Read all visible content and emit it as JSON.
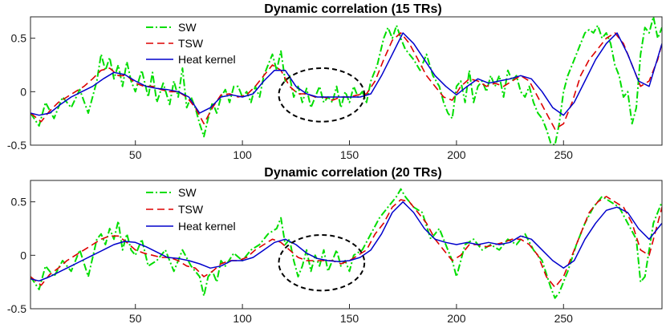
{
  "chart_data": [
    {
      "type": "line",
      "title": "Dynamic correlation (15 TRs)",
      "xlabel": "",
      "ylabel": "",
      "xlim": [
        1,
        296
      ],
      "ylim": [
        -0.5,
        0.7
      ],
      "xticks": [
        50,
        100,
        150,
        200,
        250
      ],
      "yticks": [
        -0.5,
        0,
        0.5
      ],
      "legend_position": "top-left",
      "annotation": "dashed ellipse around x 120-160",
      "ellipse": {
        "cx": 137,
        "cy": -0.03,
        "rx": 20,
        "ry": 0.25
      },
      "series": [
        {
          "name": "SW",
          "color": "#00dd00",
          "style": "dashdot",
          "x": [
            1,
            5,
            8,
            12,
            16,
            20,
            24,
            28,
            32,
            34,
            36,
            38,
            40,
            42,
            44,
            46,
            48,
            50,
            53,
            56,
            58,
            60,
            63,
            66,
            68,
            70,
            72,
            74,
            76,
            78,
            80,
            82,
            84,
            86,
            88,
            90,
            92,
            94,
            96,
            98,
            100,
            102,
            104,
            106,
            108,
            110,
            112,
            114,
            116,
            118,
            120,
            122,
            124,
            126,
            128,
            130,
            132,
            134,
            136,
            138,
            140,
            142,
            144,
            146,
            148,
            150,
            152,
            154,
            156,
            158,
            160,
            163,
            166,
            168,
            170,
            172,
            174,
            176,
            178,
            180,
            183,
            186,
            189,
            192,
            194,
            196,
            198,
            200,
            202,
            204,
            206,
            208,
            210,
            212,
            214,
            216,
            218,
            220,
            222,
            224,
            226,
            228,
            230,
            232,
            234,
            236,
            238,
            240,
            242,
            244,
            246,
            248,
            250,
            252,
            254,
            256,
            258,
            260,
            262,
            264,
            266,
            268,
            270,
            272,
            274,
            276,
            278,
            280,
            282,
            284,
            286,
            288,
            290,
            292,
            294,
            296
          ],
          "values": [
            -0.2,
            -0.32,
            -0.1,
            -0.25,
            -0.05,
            -0.15,
            0.02,
            -0.2,
            0.1,
            0.35,
            0.2,
            0.32,
            0.12,
            0.25,
            0.05,
            0.28,
            0.1,
            0.0,
            0.2,
            -0.05,
            0.18,
            -0.1,
            0.08,
            -0.12,
            0.1,
            -0.05,
            0.22,
            -0.15,
            -0.05,
            -0.15,
            -0.3,
            -0.42,
            -0.25,
            -0.1,
            -0.2,
            -0.05,
            0.02,
            -0.1,
            0.05,
            0.05,
            -0.05,
            0.0,
            -0.1,
            0.05,
            -0.05,
            0.15,
            0.25,
            0.35,
            0.2,
            0.38,
            0.1,
            0.15,
            -0.05,
            0.05,
            -0.1,
            0.03,
            -0.15,
            -0.05,
            0.05,
            -0.1,
            -0.05,
            -0.1,
            0.05,
            -0.15,
            0.0,
            -0.1,
            0.05,
            -0.05,
            0.0,
            -0.1,
            0.1,
            0.25,
            0.5,
            0.6,
            0.5,
            0.62,
            0.5,
            0.4,
            0.35,
            0.3,
            0.2,
            0.35,
            0.15,
            0.05,
            -0.1,
            -0.2,
            -0.25,
            0.05,
            0.1,
            -0.1,
            0.2,
            -0.1,
            0.05,
            0.1,
            0.0,
            0.15,
            0.05,
            0.15,
            -0.05,
            0.2,
            0.1,
            0.15,
            0.0,
            -0.05,
            0.05,
            -0.1,
            -0.2,
            -0.25,
            -0.35,
            -0.48,
            -0.5,
            -0.3,
            0.0,
            0.15,
            0.25,
            0.35,
            0.45,
            0.55,
            0.58,
            0.55,
            0.62,
            0.5,
            0.55,
            0.45,
            0.25,
            0.15,
            -0.05,
            0.0,
            -0.3,
            -0.15,
            0.35,
            0.6,
            0.55,
            0.7,
            0.5,
            0.6
          ],
          "data_name": "series-sw-line"
        },
        {
          "name": "TSW",
          "color": "#dd0000",
          "style": "dashed",
          "x": [
            1,
            6,
            10,
            14,
            18,
            22,
            26,
            30,
            34,
            38,
            42,
            46,
            50,
            54,
            58,
            62,
            66,
            70,
            74,
            78,
            82,
            86,
            90,
            94,
            98,
            102,
            106,
            110,
            114,
            118,
            122,
            126,
            130,
            134,
            138,
            142,
            146,
            150,
            154,
            158,
            162,
            166,
            170,
            174,
            178,
            182,
            186,
            190,
            194,
            198,
            202,
            206,
            210,
            214,
            218,
            222,
            226,
            230,
            234,
            238,
            242,
            246,
            250,
            254,
            258,
            262,
            266,
            270,
            274,
            278,
            282,
            286,
            290,
            294,
            296
          ],
          "values": [
            -0.2,
            -0.28,
            -0.18,
            -0.1,
            -0.05,
            0.0,
            0.05,
            0.12,
            0.2,
            0.22,
            0.15,
            0.15,
            0.08,
            0.05,
            0.05,
            0.02,
            0.0,
            0.0,
            -0.05,
            -0.15,
            -0.3,
            -0.15,
            -0.03,
            -0.02,
            -0.05,
            -0.03,
            0.05,
            0.15,
            0.25,
            0.2,
            0.05,
            -0.02,
            -0.02,
            -0.05,
            -0.05,
            -0.08,
            -0.05,
            -0.05,
            -0.03,
            -0.02,
            0.1,
            0.3,
            0.48,
            0.55,
            0.45,
            0.3,
            0.15,
            0.05,
            -0.05,
            -0.08,
            0.05,
            0.12,
            0.1,
            0.05,
            0.08,
            0.05,
            0.1,
            0.15,
            0.1,
            -0.05,
            -0.2,
            -0.35,
            -0.3,
            -0.1,
            0.15,
            0.3,
            0.4,
            0.5,
            0.55,
            0.45,
            0.25,
            0.05,
            0.1,
            0.3,
            0.45
          ],
          "data_name": "series-tsw-line"
        },
        {
          "name": "Heat kernel",
          "color": "#0000cc",
          "style": "solid",
          "x": [
            1,
            5,
            10,
            15,
            20,
            25,
            30,
            35,
            40,
            45,
            50,
            55,
            60,
            65,
            70,
            75,
            80,
            85,
            90,
            95,
            100,
            105,
            110,
            115,
            120,
            125,
            130,
            135,
            140,
            145,
            150,
            155,
            160,
            165,
            170,
            175,
            180,
            185,
            190,
            195,
            200,
            205,
            210,
            215,
            220,
            225,
            230,
            235,
            240,
            245,
            250,
            255,
            260,
            265,
            270,
            275,
            280,
            285,
            290,
            296
          ],
          "values": [
            -0.2,
            -0.22,
            -0.2,
            -0.12,
            -0.05,
            0.0,
            0.05,
            0.12,
            0.18,
            0.16,
            0.1,
            0.05,
            0.03,
            0.02,
            0.0,
            -0.05,
            -0.2,
            -0.15,
            -0.05,
            -0.03,
            -0.05,
            -0.02,
            0.1,
            0.2,
            0.2,
            0.05,
            -0.02,
            -0.05,
            -0.05,
            -0.05,
            -0.05,
            -0.05,
            -0.02,
            0.15,
            0.35,
            0.55,
            0.45,
            0.3,
            0.15,
            0.05,
            -0.03,
            0.05,
            0.12,
            0.08,
            0.1,
            0.12,
            0.15,
            0.12,
            0.0,
            -0.15,
            -0.22,
            -0.1,
            0.1,
            0.3,
            0.45,
            0.55,
            0.35,
            0.1,
            0.05,
            0.45
          ],
          "data_name": "series-heat-kernel-line"
        }
      ]
    },
    {
      "type": "line",
      "title": "Dynamic correlation (20 TRs)",
      "xlabel": "",
      "ylabel": "",
      "xlim": [
        1,
        296
      ],
      "ylim": [
        -0.5,
        0.7
      ],
      "xticks": [
        50,
        100,
        150,
        200,
        250
      ],
      "yticks": [
        -0.5,
        0,
        0.5
      ],
      "legend_position": "top-left",
      "annotation": "dashed ellipse around x 120-160",
      "ellipse": {
        "cx": 137,
        "cy": -0.07,
        "rx": 20,
        "ry": 0.26
      },
      "series": [
        {
          "name": "SW",
          "color": "#00dd00",
          "style": "dashdot",
          "x": [
            1,
            5,
            8,
            12,
            16,
            20,
            24,
            28,
            32,
            34,
            36,
            38,
            40,
            42,
            44,
            46,
            48,
            50,
            53,
            56,
            60,
            64,
            68,
            72,
            76,
            80,
            82,
            84,
            86,
            88,
            90,
            92,
            96,
            100,
            104,
            108,
            112,
            116,
            118,
            120,
            122,
            124,
            126,
            128,
            130,
            132,
            134,
            136,
            138,
            140,
            142,
            144,
            146,
            148,
            150,
            152,
            156,
            160,
            164,
            168,
            172,
            174,
            176,
            178,
            180,
            184,
            188,
            192,
            196,
            198,
            200,
            204,
            208,
            212,
            216,
            220,
            224,
            228,
            232,
            236,
            240,
            244,
            246,
            248,
            252,
            256,
            260,
            264,
            268,
            272,
            276,
            280,
            284,
            286,
            288,
            292,
            296
          ],
          "values": [
            -0.2,
            -0.32,
            -0.1,
            -0.2,
            -0.05,
            -0.15,
            0.05,
            -0.2,
            0.15,
            0.2,
            0.1,
            0.25,
            0.15,
            0.32,
            0.05,
            0.2,
            0.05,
            0.0,
            0.15,
            -0.1,
            -0.05,
            0.05,
            -0.15,
            0.05,
            -0.1,
            -0.2,
            -0.38,
            -0.2,
            -0.15,
            -0.25,
            -0.05,
            -0.1,
            0.02,
            -0.05,
            0.05,
            0.1,
            0.2,
            0.25,
            0.35,
            0.1,
            0.15,
            -0.05,
            -0.2,
            -0.1,
            0.05,
            -0.15,
            0.0,
            -0.1,
            0.05,
            -0.15,
            -0.05,
            0.05,
            -0.1,
            -0.05,
            -0.15,
            0.0,
            0.05,
            0.2,
            0.35,
            0.45,
            0.55,
            0.62,
            0.55,
            0.5,
            0.45,
            0.4,
            0.15,
            0.25,
            0.05,
            -0.05,
            -0.2,
            0.1,
            0.15,
            0.05,
            0.1,
            0.05,
            0.15,
            0.1,
            0.2,
            0.05,
            -0.05,
            -0.3,
            -0.4,
            -0.35,
            -0.15,
            0.1,
            0.3,
            0.45,
            0.55,
            0.5,
            0.45,
            0.3,
            0.15,
            -0.25,
            -0.2,
            0.3,
            0.5
          ],
          "data_name": "series-sw-line"
        },
        {
          "name": "TSW",
          "color": "#dd0000",
          "style": "dashed",
          "x": [
            1,
            6,
            10,
            14,
            18,
            22,
            26,
            30,
            34,
            38,
            42,
            46,
            50,
            54,
            58,
            62,
            66,
            70,
            74,
            78,
            82,
            86,
            90,
            94,
            98,
            102,
            106,
            110,
            114,
            118,
            122,
            126,
            130,
            134,
            138,
            142,
            146,
            150,
            154,
            158,
            162,
            166,
            170,
            174,
            178,
            182,
            186,
            190,
            194,
            198,
            202,
            206,
            210,
            214,
            218,
            222,
            226,
            230,
            234,
            238,
            242,
            246,
            250,
            254,
            258,
            262,
            266,
            270,
            274,
            278,
            282,
            286,
            290,
            294,
            296
          ],
          "values": [
            -0.2,
            -0.28,
            -0.18,
            -0.12,
            -0.05,
            0.0,
            0.05,
            0.1,
            0.15,
            0.18,
            0.18,
            0.12,
            0.05,
            0.02,
            0.0,
            -0.02,
            -0.02,
            -0.05,
            -0.1,
            -0.12,
            -0.2,
            -0.15,
            -0.08,
            -0.05,
            -0.05,
            -0.02,
            0.05,
            0.1,
            0.15,
            0.12,
            0.05,
            -0.02,
            -0.05,
            -0.05,
            -0.05,
            -0.05,
            -0.08,
            -0.05,
            0.0,
            0.05,
            0.2,
            0.3,
            0.45,
            0.52,
            0.5,
            0.4,
            0.3,
            0.15,
            0.05,
            -0.05,
            0.0,
            0.1,
            0.1,
            0.08,
            0.1,
            0.12,
            0.15,
            0.15,
            0.1,
            0.0,
            -0.2,
            -0.3,
            -0.2,
            0.0,
            0.2,
            0.4,
            0.5,
            0.55,
            0.5,
            0.45,
            0.3,
            0.05,
            0.0,
            0.3,
            0.45
          ],
          "data_name": "series-tsw-line"
        },
        {
          "name": "Heat kernel",
          "color": "#0000cc",
          "style": "solid",
          "x": [
            1,
            5,
            10,
            15,
            20,
            25,
            30,
            35,
            40,
            45,
            50,
            55,
            60,
            65,
            70,
            75,
            80,
            85,
            90,
            95,
            100,
            105,
            110,
            115,
            120,
            125,
            130,
            135,
            140,
            145,
            150,
            155,
            160,
            165,
            170,
            175,
            180,
            185,
            190,
            195,
            200,
            205,
            210,
            215,
            220,
            225,
            230,
            235,
            240,
            245,
            250,
            255,
            260,
            265,
            270,
            275,
            280,
            285,
            290,
            296
          ],
          "values": [
            -0.22,
            -0.24,
            -0.2,
            -0.15,
            -0.1,
            -0.05,
            0.0,
            0.05,
            0.1,
            0.13,
            0.12,
            0.08,
            0.03,
            -0.02,
            -0.03,
            -0.05,
            -0.08,
            -0.12,
            -0.1,
            -0.05,
            -0.05,
            -0.02,
            0.05,
            0.12,
            0.15,
            0.1,
            0.02,
            -0.03,
            -0.05,
            -0.06,
            -0.05,
            -0.02,
            0.05,
            0.2,
            0.4,
            0.5,
            0.4,
            0.25,
            0.15,
            0.12,
            0.1,
            0.12,
            0.1,
            0.12,
            0.1,
            0.12,
            0.18,
            0.15,
            0.05,
            -0.05,
            -0.12,
            -0.05,
            0.15,
            0.3,
            0.42,
            0.45,
            0.4,
            0.25,
            0.15,
            0.3
          ],
          "data_name": "series-heat-kernel-line"
        }
      ]
    }
  ]
}
